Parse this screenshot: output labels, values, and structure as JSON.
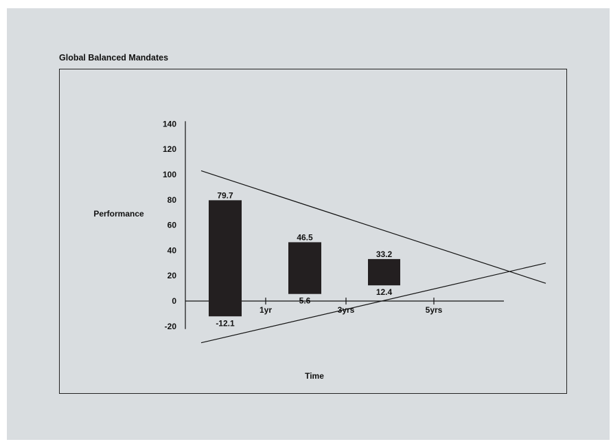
{
  "title": "Global Balanced Mandates",
  "chart_data": {
    "type": "bar",
    "title": "Global Balanced Mandates",
    "xlabel": "Time",
    "ylabel": "Performance",
    "ylim": [
      -20,
      140
    ],
    "yticks": [
      140,
      120,
      100,
      80,
      60,
      40,
      20,
      0,
      -20
    ],
    "xticks": [
      "1yr",
      "3yrs",
      "5yrs"
    ],
    "bars": [
      {
        "period": "1yr",
        "high": 79.7,
        "low": -12.1,
        "high_label": "79.7",
        "low_label": "-12.1"
      },
      {
        "period": "3yrs",
        "high": 46.5,
        "low": 5.6,
        "high_label": "46.5",
        "low_label": "5.6"
      },
      {
        "period": "5yrs",
        "high": 33.2,
        "low": 12.4,
        "high_label": "33.2",
        "low_label": "12.4"
      }
    ],
    "trend_lines": [
      {
        "name": "upper",
        "y_start": 103,
        "y_end": 14
      },
      {
        "name": "lower",
        "y_start": -33,
        "y_end": 30
      }
    ],
    "grid": false,
    "legend": "none",
    "colors": {
      "bar": "#231f20",
      "background": "#d9dde0",
      "line": "#111111"
    }
  }
}
